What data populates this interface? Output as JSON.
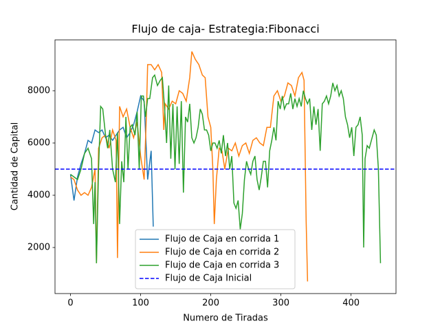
{
  "chart_data": {
    "type": "line",
    "title": "Flujo de caja- Estrategia:Fibonacci",
    "x_label": "Numero de Tiradas",
    "y_label": "Cantidad de Capital",
    "xlim": [
      -22.1,
      464.1
    ],
    "ylim": [
      237,
      9947
    ],
    "xticks": [
      0,
      100,
      200,
      300,
      400
    ],
    "yticks": [
      2000,
      4000,
      6000,
      8000
    ],
    "legend": "lower center",
    "series": [
      {
        "name": "Flujo de Caja en corrida 1",
        "color": "#1f77b4",
        "x": [
          0,
          5,
          10,
          15,
          20,
          25,
          30,
          35,
          40,
          45,
          50,
          55,
          60,
          65,
          70,
          75,
          80,
          85,
          90,
          95,
          100,
          105,
          110,
          115,
          118
        ],
        "values": [
          4800,
          3800,
          4700,
          5200,
          5600,
          6100,
          6000,
          6500,
          6400,
          6500,
          6200,
          6300,
          6100,
          6300,
          6500,
          6600,
          6200,
          6400,
          6700,
          7200,
          7800,
          7600,
          4600,
          5700,
          2800
        ]
      },
      {
        "name": "Flujo de Caja en corrida 2",
        "color": "#ff7f0e",
        "x": [
          0,
          5,
          10,
          15,
          20,
          25,
          30,
          35,
          37,
          40,
          45,
          50,
          55,
          60,
          65,
          67,
          70,
          75,
          80,
          85,
          90,
          95,
          100,
          105,
          108,
          110,
          115,
          120,
          125,
          130,
          133,
          135,
          140,
          145,
          150,
          155,
          160,
          165,
          170,
          173,
          178,
          183,
          188,
          192,
          196,
          200,
          203,
          205,
          208,
          212,
          216,
          220,
          225,
          230,
          235,
          240,
          245,
          250,
          255,
          260,
          265,
          270,
          275,
          280,
          285,
          290,
          295,
          300,
          305,
          310,
          315,
          320,
          325,
          330,
          333,
          336,
          338
        ],
        "values": [
          4700,
          4600,
          4200,
          4000,
          4100,
          4000,
          4300,
          5000,
          1400,
          5800,
          6200,
          6300,
          5800,
          6500,
          6100,
          1600,
          7400,
          7000,
          7300,
          6600,
          6200,
          6800,
          5500,
          4600,
          6900,
          9000,
          9000,
          8800,
          9000,
          8700,
          6500,
          7500,
          7300,
          7600,
          7500,
          8000,
          7900,
          7600,
          8500,
          9500,
          9200,
          9000,
          8600,
          8500,
          7000,
          6600,
          5000,
          2900,
          4600,
          5800,
          5700,
          5000,
          5800,
          5700,
          6000,
          5500,
          5900,
          6000,
          5600,
          6100,
          6200,
          6000,
          5900,
          6600,
          6600,
          7800,
          8000,
          7600,
          7800,
          8300,
          8200,
          7800,
          8500,
          8700,
          8400,
          3000,
          700
        ]
      },
      {
        "name": "Flujo de Caja en corrida 3",
        "color": "#2ca02c",
        "x": [
          0,
          5,
          10,
          15,
          20,
          25,
          30,
          33,
          35,
          37,
          40,
          43,
          46,
          50,
          53,
          56,
          60,
          64,
          67,
          70,
          73,
          76,
          79,
          82,
          85,
          88,
          92,
          95,
          98,
          101,
          104,
          107,
          110,
          113,
          117,
          120,
          124,
          128,
          131,
          134,
          137,
          140,
          143,
          146,
          149,
          152,
          155,
          158,
          161,
          164,
          167,
          170,
          173,
          176,
          179,
          182,
          185,
          188,
          191,
          194,
          197,
          200,
          203,
          206,
          209,
          212,
          215,
          218,
          221,
          224,
          227,
          230,
          233,
          236,
          239,
          242,
          245,
          248,
          251,
          254,
          257,
          260,
          263,
          266,
          269,
          272,
          275,
          278,
          281,
          284,
          287,
          290,
          293,
          296,
          299,
          302,
          305,
          308,
          311,
          314,
          317,
          320,
          323,
          326,
          329,
          332,
          335,
          338,
          341,
          344,
          347,
          350,
          353,
          356,
          359,
          362,
          365,
          368,
          371,
          374,
          377,
          380,
          383,
          386,
          389,
          392,
          395,
          398,
          401,
          404,
          407,
          410,
          413,
          416,
          418,
          420,
          423,
          426,
          430,
          433,
          436,
          439,
          442
        ],
        "values": [
          4800,
          4700,
          4600,
          5000,
          5600,
          5800,
          5400,
          2900,
          4500,
          1400,
          5000,
          7400,
          7300,
          6300,
          5800,
          6500,
          5000,
          4500,
          6400,
          2900,
          5300,
          4500,
          7000,
          5000,
          6600,
          6700,
          6300,
          7200,
          5000,
          7800,
          7800,
          7000,
          7700,
          7700,
          8500,
          8600,
          8200,
          8400,
          8500,
          7400,
          6000,
          8200,
          5400,
          7500,
          5000,
          7400,
          5200,
          7600,
          4100,
          7000,
          6800,
          7500,
          6200,
          6000,
          6200,
          6600,
          7300,
          7100,
          6500,
          6500,
          6300,
          5700,
          6000,
          6000,
          5800,
          6100,
          5600,
          6300,
          5500,
          6000,
          5000,
          5500,
          3700,
          3500,
          3800,
          2700,
          3300,
          4600,
          5300,
          5000,
          4800,
          5300,
          5500,
          4600,
          4200,
          4700,
          5300,
          5300,
          4300,
          5700,
          6100,
          6600,
          6100,
          7600,
          7300,
          7800,
          7300,
          7500,
          7500,
          7900,
          7300,
          7700,
          7400,
          7700,
          7400,
          8000,
          7700,
          7500,
          7700,
          6500,
          7400,
          6700,
          7300,
          5700,
          7500,
          7600,
          7800,
          7500,
          7800,
          8300,
          8000,
          8200,
          7800,
          8000,
          7700,
          7000,
          6700,
          6200,
          6600,
          5500,
          6600,
          6700,
          7000,
          6300,
          2000,
          5400,
          5900,
          5800,
          6200,
          6500,
          6300,
          5000,
          1400
        ]
      }
    ],
    "hline": {
      "name": "Flujo de Caja Inicial",
      "value": 5000,
      "color": "#0000ff",
      "style": "dashed"
    }
  }
}
